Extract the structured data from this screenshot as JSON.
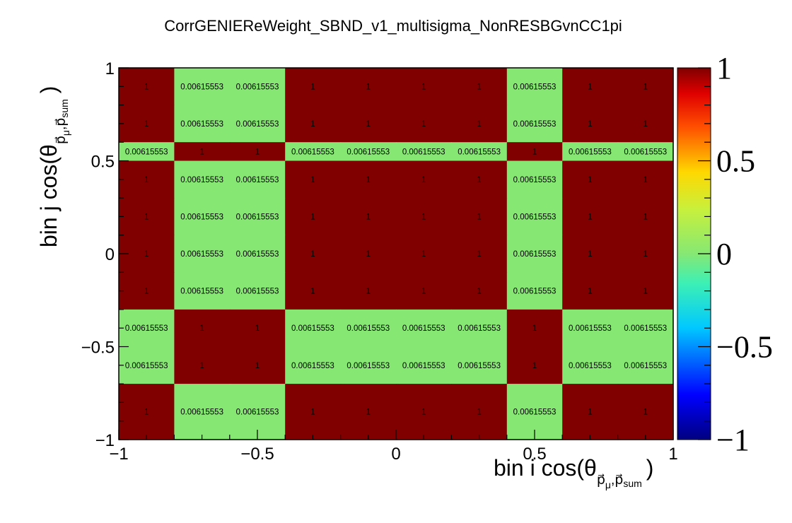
{
  "chart_data": {
    "type": "heatmap",
    "title": "CorrGENIEReWeight_SBND_v1_multisigma_NonRESBGvnCC1pi",
    "xlabel": {
      "main": "bin i cos(θ",
      "sub": "p⃗",
      "subsub": "μ",
      "sub2": ",p⃗",
      "subsub2": "sum",
      "close": ")"
    },
    "ylabel": {
      "main": "bin j cos(θ",
      "sub": "p⃗",
      "subsub": "μ",
      "sub2": ",p⃗",
      "subsub2": "sum",
      "close": ")"
    },
    "x_ticks": [
      "−1",
      "−0.5",
      "0",
      "0.5",
      "1"
    ],
    "y_ticks": [
      "−1",
      "−0.5",
      "0",
      "0.5",
      "1"
    ],
    "xlim": [
      -1,
      1
    ],
    "ylim": [
      -1,
      1
    ],
    "zlim": [
      -1,
      1
    ],
    "z_ticks": [
      "−1",
      "−0.5",
      "0",
      "0.5",
      "1"
    ],
    "x_edges": [
      -1,
      -0.8,
      -0.6,
      -0.4,
      -0.2,
      0,
      0.2,
      0.4,
      0.6,
      0.8,
      1
    ],
    "y_edges": [
      -1,
      -0.9,
      -0.8,
      -0.7,
      -0.6,
      -0.5,
      -0.4,
      -0.3,
      -0.2,
      -0.1,
      0,
      0.1,
      0.2,
      0.3,
      0.4,
      0.5,
      0.6,
      0.7,
      0.8,
      0.9,
      1
    ],
    "rows_top_to_bottom": [
      [
        "1",
        "0.00615553",
        "0.00615553",
        "1",
        "1",
        "1",
        "1",
        "0.00615553",
        "1",
        "1"
      ],
      [
        "1",
        "0.00615553",
        "0.00615553",
        "1",
        "1",
        "1",
        "1",
        "0.00615553",
        "1",
        "1"
      ],
      [
        "0.00615553",
        "1",
        "1",
        "0.00615553",
        "0.00615553",
        "0.00615553",
        "0.00615553",
        "1",
        "0.00615553",
        "0.00615553"
      ],
      [
        "1",
        "0.00615553",
        "0.00615553",
        "1",
        "1",
        "1",
        "1",
        "0.00615553",
        "1",
        "1"
      ],
      [
        "1",
        "0.00615553",
        "0.00615553",
        "1",
        "1",
        "1",
        "1",
        "0.00615553",
        "1",
        "1"
      ],
      [
        "1",
        "0.00615553",
        "0.00615553",
        "1",
        "1",
        "1",
        "1",
        "0.00615553",
        "1",
        "1"
      ],
      [
        "1",
        "0.00615553",
        "0.00615553",
        "1",
        "1",
        "1",
        "1",
        "0.00615553",
        "1",
        "1"
      ],
      [
        "0.00615553",
        "1",
        "1",
        "0.00615553",
        "0.00615553",
        "0.00615553",
        "0.00615553",
        "1",
        "0.00615553",
        "0.00615553"
      ],
      [
        "0.00615553",
        "1",
        "1",
        "0.00615553",
        "0.00615553",
        "0.00615553",
        "0.00615553",
        "1",
        "0.00615553",
        "0.00615553"
      ],
      [
        "1",
        "0.00615553",
        "0.00615553",
        "1",
        "1",
        "1",
        "1",
        "0.00615553",
        "1",
        "1"
      ]
    ],
    "row_y_ranges_top_to_bottom": [
      [
        0.8,
        1.0
      ],
      [
        0.6,
        0.8
      ],
      [
        0.5,
        0.6
      ],
      [
        0.3,
        0.5
      ],
      [
        0.1,
        0.3
      ],
      [
        -0.1,
        0.1
      ],
      [
        -0.3,
        -0.1
      ],
      [
        -0.5,
        -0.3
      ],
      [
        -0.7,
        -0.5
      ],
      [
        -1.0,
        -0.7
      ]
    ],
    "colors": {
      "high": "#800000",
      "low": "#86e873"
    },
    "colormap": "rainbow (dark blue to dark red)",
    "grid": false
  }
}
